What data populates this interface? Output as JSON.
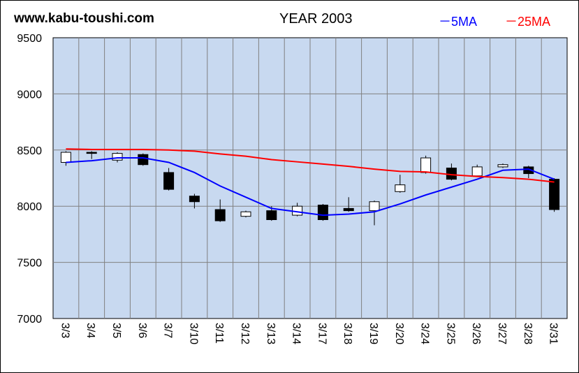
{
  "header": {
    "site": "www.kabu-toushi.com",
    "year_title": "YEAR 2003",
    "legend_5ma": "－5MA",
    "legend_25ma": "－25MA"
  },
  "colors": {
    "plot_bg": "#c8d9f0",
    "grid": "#808080",
    "ma5": "#0000ff",
    "ma25": "#ff0000",
    "up_candle": "#ffffff",
    "down_candle": "#000000"
  },
  "chart_data": {
    "type": "candlestick",
    "title": "YEAR 2003",
    "ylim": [
      7000,
      9500
    ],
    "yticks": [
      9500,
      9000,
      8500,
      8000,
      7500,
      7000
    ],
    "grid": true,
    "legend_placement": "top-right",
    "categories": [
      "3/3",
      "3/4",
      "3/5",
      "3/6",
      "3/7",
      "3/10",
      "3/11",
      "3/12",
      "3/13",
      "3/14",
      "3/17",
      "3/18",
      "3/19",
      "3/20",
      "3/24",
      "3/25",
      "3/26",
      "3/27",
      "3/28",
      "3/31"
    ],
    "ohlc": [
      {
        "open": 8390,
        "high": 8490,
        "low": 8360,
        "close": 8480
      },
      {
        "open": 8480,
        "high": 8490,
        "low": 8420,
        "close": 8470
      },
      {
        "open": 8410,
        "high": 8480,
        "low": 8390,
        "close": 8470
      },
      {
        "open": 8460,
        "high": 8470,
        "low": 8360,
        "close": 8370
      },
      {
        "open": 8300,
        "high": 8340,
        "low": 8140,
        "close": 8150
      },
      {
        "open": 8090,
        "high": 8110,
        "low": 7980,
        "close": 8040
      },
      {
        "open": 7970,
        "high": 8060,
        "low": 7860,
        "close": 7870
      },
      {
        "open": 7910,
        "high": 7960,
        "low": 7900,
        "close": 7950
      },
      {
        "open": 7960,
        "high": 8000,
        "low": 7870,
        "close": 7880
      },
      {
        "open": 7920,
        "high": 8030,
        "low": 7910,
        "close": 8000
      },
      {
        "open": 8010,
        "high": 8020,
        "low": 7870,
        "close": 7880
      },
      {
        "open": 7980,
        "high": 8080,
        "low": 7950,
        "close": 7960
      },
      {
        "open": 7960,
        "high": 8050,
        "low": 7830,
        "close": 8040
      },
      {
        "open": 8130,
        "high": 8280,
        "low": 8120,
        "close": 8190
      },
      {
        "open": 8300,
        "high": 8450,
        "low": 8290,
        "close": 8430
      },
      {
        "open": 8340,
        "high": 8380,
        "low": 8230,
        "close": 8240
      },
      {
        "open": 8270,
        "high": 8370,
        "low": 8260,
        "close": 8350
      },
      {
        "open": 8350,
        "high": 8380,
        "low": 8340,
        "close": 8370
      },
      {
        "open": 8350,
        "high": 8360,
        "low": 8250,
        "close": 8290
      },
      {
        "open": 8240,
        "high": 8250,
        "low": 7950,
        "close": 7970
      }
    ],
    "series": [
      {
        "name": "5MA",
        "values": [
          8390,
          8405,
          8430,
          8430,
          8390,
          8300,
          8180,
          8080,
          7980,
          7950,
          7920,
          7930,
          7950,
          8020,
          8100,
          8170,
          8240,
          8320,
          8330,
          8240
        ]
      },
      {
        "name": "25MA",
        "values": [
          8510,
          8505,
          8505,
          8505,
          8500,
          8490,
          8465,
          8445,
          8415,
          8395,
          8375,
          8355,
          8330,
          8310,
          8305,
          8280,
          8265,
          8255,
          8240,
          8215
        ]
      }
    ]
  }
}
